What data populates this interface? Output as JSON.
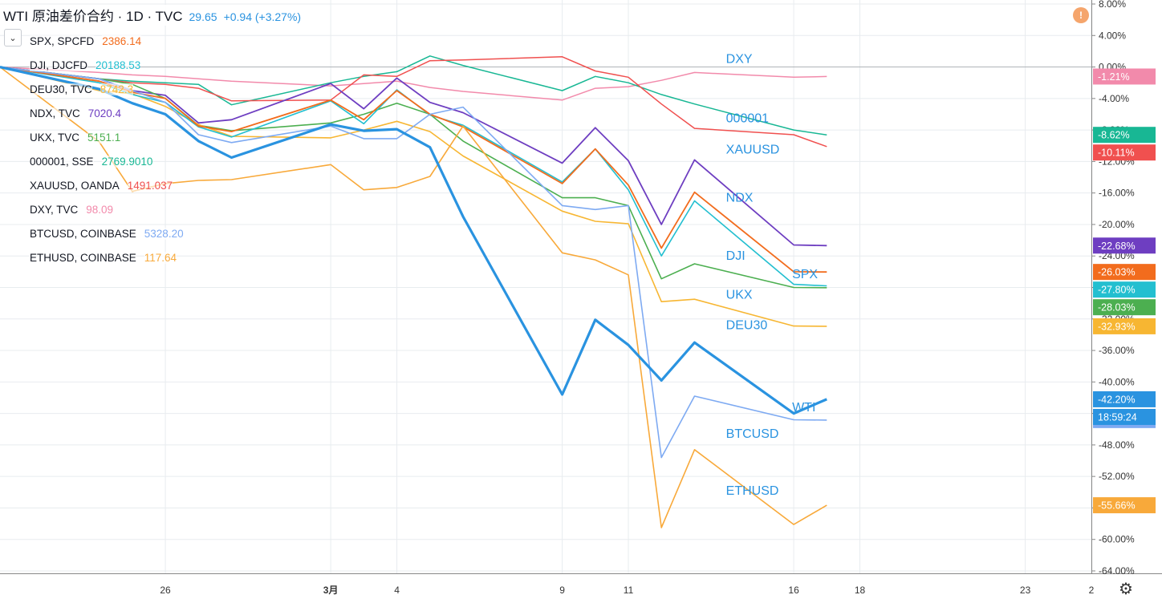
{
  "title": {
    "symbol": "WTI 原油差价合约 · 1D · TVC",
    "price": "29.65",
    "change": "+0.94 (+3.27%)"
  },
  "legend": [
    {
      "name": "SPX, SPCFD",
      "value": "2386.14",
      "color": "#f26c1d"
    },
    {
      "name": "DJI, DJCFD",
      "value": "20188.53",
      "color": "#23bfd0"
    },
    {
      "name": "DEU30, TVC",
      "value": "8742.3",
      "color": "#f7b632"
    },
    {
      "name": "NDX, TVC",
      "value": "7020.4",
      "color": "#6e3ec1"
    },
    {
      "name": "UKX, TVC",
      "value": "5151.1",
      "color": "#4caf50"
    },
    {
      "name": "000001, SSE",
      "value": "2769.9010",
      "color": "#18b794"
    },
    {
      "name": "XAUUSD, OANDA",
      "value": "1491.037",
      "color": "#f0504f"
    },
    {
      "name": "DXY, TVC",
      "value": "98.09",
      "color": "#f28aab"
    },
    {
      "name": "BTCUSD, COINBASE",
      "value": "5328.20",
      "color": "#7eaaf2"
    },
    {
      "name": "ETHUSD, COINBASE",
      "value": "117.64",
      "color": "#f8a93a"
    }
  ],
  "chart_data": {
    "type": "line",
    "x": [
      "2020-02-21",
      "2020-02-24",
      "2020-02-25",
      "2020-02-26",
      "2020-02-27",
      "2020-02-28",
      "2020-03-02",
      "2020-03-03",
      "2020-03-04",
      "2020-03-05",
      "2020-03-06",
      "2020-03-09",
      "2020-03-10",
      "2020-03-11",
      "2020-03-12",
      "2020-03-13",
      "2020-03-16",
      "2020-03-17"
    ],
    "xticks": [
      {
        "date": "2020-02-26",
        "label": "26",
        "bold": false
      },
      {
        "date": "2020-03-02",
        "label": "3月",
        "bold": true
      },
      {
        "date": "2020-03-04",
        "label": "4",
        "bold": false
      },
      {
        "date": "2020-03-09",
        "label": "9",
        "bold": false
      },
      {
        "date": "2020-03-11",
        "label": "11",
        "bold": false
      },
      {
        "date": "2020-03-16",
        "label": "16",
        "bold": false
      },
      {
        "date": "2020-03-18",
        "label": "18",
        "bold": false
      },
      {
        "date": "2020-03-23",
        "label": "23",
        "bold": false
      },
      {
        "date": "2020-03-25",
        "label": "2",
        "bold": false
      }
    ],
    "xlim": [
      "2020-02-21",
      "2020-03-25"
    ],
    "ylim": [
      -64,
      8
    ],
    "yticks": [
      8,
      4,
      0,
      -4,
      -8,
      -12,
      -16,
      -20,
      -24,
      -28,
      -32,
      -36,
      -40,
      -44,
      -48,
      -52,
      -56,
      -60,
      -64
    ],
    "ytick_labels": [
      "8.00%",
      "4.00%",
      "0.00%",
      "-4.00%",
      "-8.00%",
      "-12.00%",
      "-16.00%",
      "-20.00%",
      "-24.00%",
      "-28.00%",
      "-32.00%",
      "-36.00%",
      "-40.00%",
      "-44.00%",
      "-48.00%",
      "-52.00%",
      "-56.00%",
      "-60.00%",
      "-64.00%"
    ],
    "baseline": 0,
    "grid": true,
    "series": [
      {
        "name": "DXY",
        "label": "DXY",
        "badge": "-1.21%",
        "color": "#f28aab",
        "width": 1.5,
        "values": [
          0,
          -0.7,
          -1.0,
          -1.2,
          -1.5,
          -1.8,
          -2.4,
          -2.1,
          -1.8,
          -2.6,
          -3.1,
          -4.2,
          -2.7,
          -2.5,
          -1.7,
          -0.7,
          -1.3,
          -1.21
        ]
      },
      {
        "name": "000001",
        "label": "000001",
        "badge": "-8.62%",
        "color": "#18b794",
        "width": 1.5,
        "values": [
          0,
          -1.5,
          -1.8,
          -2.0,
          -2.2,
          -4.8,
          -2.0,
          -1.2,
          -0.6,
          1.4,
          0.2,
          -3.0,
          -1.2,
          -2.0,
          -3.5,
          -4.7,
          -8.0,
          -8.62
        ]
      },
      {
        "name": "XAUUSD",
        "label": "XAUUSD",
        "badge": "-10.11%",
        "color": "#f0504f",
        "width": 1.5,
        "values": [
          0,
          -1.5,
          -2.0,
          -2.2,
          -2.7,
          -4.3,
          -4.2,
          -1.0,
          -1.2,
          0.8,
          0.9,
          1.3,
          -0.5,
          -1.3,
          -4.7,
          -7.8,
          -8.6,
          -10.11
        ]
      },
      {
        "name": "NDX",
        "label": "NDX",
        "badge": "-22.68%",
        "color": "#6e3ec1",
        "width": 1.8,
        "values": [
          0,
          -1.5,
          -3.0,
          -3.6,
          -7.1,
          -6.7,
          -2.1,
          -5.3,
          -1.4,
          -4.5,
          -5.8,
          -12.2,
          -7.7,
          -11.9,
          -20.0,
          -11.8,
          -22.6,
          -22.68
        ]
      },
      {
        "name": "DJI",
        "label": "DJI",
        "badge": "-27.80%",
        "color": "#23bfd0",
        "width": 1.6,
        "values": [
          0,
          -2.0,
          -3.5,
          -4.5,
          -7.6,
          -8.9,
          -4.3,
          -7.2,
          -2.9,
          -6.1,
          -7.4,
          -14.6,
          -10.4,
          -15.6,
          -24.0,
          -17.0,
          -27.6,
          -27.8
        ]
      },
      {
        "name": "SPX",
        "label": "SPX",
        "badge": "-26.03%",
        "color": "#f26c1d",
        "width": 1.8,
        "values": [
          0,
          -1.8,
          -3.2,
          -4.0,
          -7.5,
          -8.2,
          -4.2,
          -6.7,
          -3.0,
          -6.0,
          -7.6,
          -14.8,
          -10.4,
          -15.0,
          -23.0,
          -15.9,
          -26.0,
          -26.03
        ]
      },
      {
        "name": "UKX",
        "label": "UKX",
        "badge": "-28.03%",
        "color": "#4caf50",
        "width": 1.6,
        "values": [
          0,
          -1.5,
          -2.2,
          -4.0,
          -7.4,
          -8.1,
          -7.1,
          -6.0,
          -4.6,
          -6.0,
          -9.4,
          -16.6,
          -16.6,
          -17.6,
          -26.9,
          -25.0,
          -28.0,
          -28.03
        ]
      },
      {
        "name": "DEU30",
        "label": "DEU30",
        "badge": "-32.93%",
        "color": "#f7b632",
        "width": 1.6,
        "values": [
          0,
          -3.0,
          -3.4,
          -5.0,
          -7.3,
          -8.8,
          -9.0,
          -8.0,
          -6.9,
          -8.2,
          -11.3,
          -18.3,
          -19.6,
          -19.9,
          -29.8,
          -29.5,
          -32.9,
          -32.93
        ]
      },
      {
        "name": "WTI",
        "label": "WTI",
        "badge": "-42.20%",
        "color": "#2a93e0",
        "width": 3.2,
        "values": [
          0,
          -2.8,
          -4.6,
          -6.0,
          -9.4,
          -11.5,
          -7.3,
          -8.1,
          -7.9,
          -10.2,
          -19.0,
          -41.6,
          -32.1,
          -35.3,
          -39.8,
          -35.0,
          -44.0,
          -42.2
        ]
      },
      {
        "name": "BTCUSD",
        "label": "BTCUSD",
        "badge": "-44.84%",
        "color": "#7eaaf2",
        "width": 1.6,
        "values": [
          0,
          -1.5,
          -3.0,
          -4.5,
          -8.6,
          -9.6,
          -7.5,
          -9.1,
          -9.1,
          -6.0,
          -5.1,
          -17.6,
          -18.1,
          -17.6,
          -49.6,
          -41.8,
          -44.8,
          -44.84
        ]
      },
      {
        "name": "ETHUSD",
        "label": "ETHUSD",
        "badge": "-55.66%",
        "color": "#f8a93a",
        "width": 1.6,
        "values": [
          0,
          -9.5,
          -15.8,
          -14.8,
          -14.4,
          -14.3,
          -12.4,
          -15.6,
          -15.3,
          -13.9,
          -7.5,
          -23.6,
          -24.5,
          -26.4,
          -58.5,
          -48.6,
          -58.1,
          -55.66
        ]
      }
    ],
    "time_badge": "18:59:24"
  }
}
